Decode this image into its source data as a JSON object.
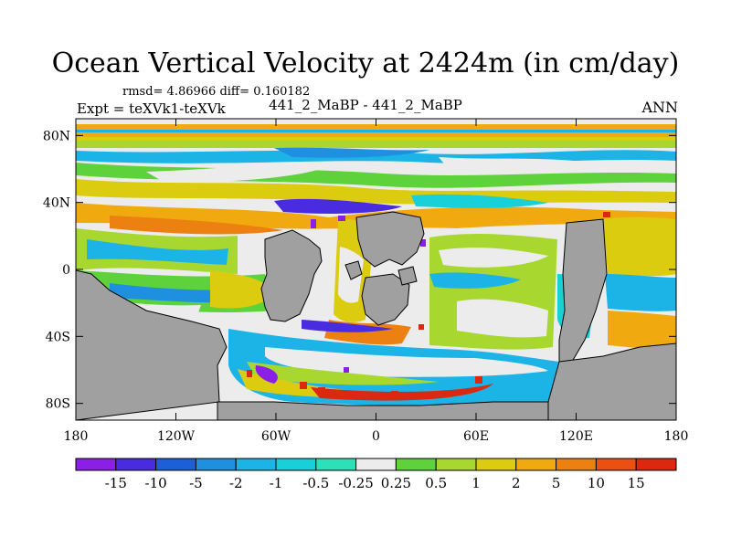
{
  "title": "Ocean Vertical Velocity at 2424m (in cm/day)",
  "stats_line": "rmsd= 4.86966 diff= 0.160182",
  "expt_line": "Expt = teXVk1-teXVk",
  "case_line": "441_2_MaBP - 441_2_MaBP",
  "season": "ANN",
  "land_color": "#a0a0a0",
  "chart_data": {
    "type": "heatmap",
    "title": "Ocean Vertical Velocity at 2424m (in cm/day)",
    "xlabel": "",
    "ylabel": "",
    "xlim": [
      -180,
      180
    ],
    "ylim": [
      -90,
      90
    ],
    "x_ticks": [
      {
        "value": -180,
        "label": "180"
      },
      {
        "value": -120,
        "label": "120W"
      },
      {
        "value": -60,
        "label": "60W"
      },
      {
        "value": 0,
        "label": "0"
      },
      {
        "value": 60,
        "label": "60E"
      },
      {
        "value": 120,
        "label": "120E"
      },
      {
        "value": 180,
        "label": "180"
      }
    ],
    "y_ticks": [
      {
        "value": 80,
        "label": "80N"
      },
      {
        "value": 40,
        "label": "40N"
      },
      {
        "value": 0,
        "label": "0"
      },
      {
        "value": -40,
        "label": "40S"
      },
      {
        "value": -80,
        "label": "80S"
      }
    ],
    "colorbar": {
      "labels": [
        "-15",
        "-10",
        "-5",
        "-2",
        "-1",
        "-0.5",
        "-0.25",
        "0.25",
        "0.5",
        "1",
        "2",
        "5",
        "10",
        "15"
      ],
      "colors": [
        "#8a1fe6",
        "#4a2ce0",
        "#1c5fd8",
        "#1f8fe0",
        "#1cb4e6",
        "#18d0d8",
        "#2ee0b8",
        "#ececec",
        "#5ed23a",
        "#a8d830",
        "#dccc10",
        "#f0aa10",
        "#ec8010",
        "#ec5010",
        "#dc2810"
      ]
    }
  }
}
